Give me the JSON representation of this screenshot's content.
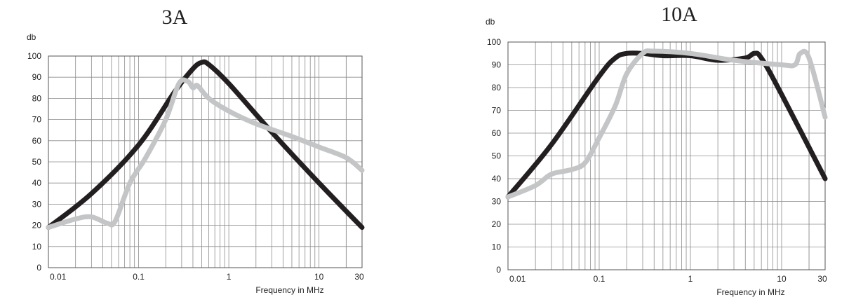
{
  "colors": {
    "dark_series": "#231f20",
    "light_series": "#c4c5c7",
    "grid": "#8c8c8c",
    "text": "#222222"
  },
  "chart_data": [
    {
      "type": "line",
      "title": "3A",
      "ylabel": "db",
      "xlabel": "Frequency in MHz",
      "x_scale": "log",
      "xlim": [
        0.01,
        30
      ],
      "ylim": [
        0,
        100
      ],
      "grid": true,
      "x_tick_labels": [
        "0.01",
        "0.1",
        "1",
        "10",
        "30"
      ],
      "y_tick_labels": [
        "0",
        "10",
        "20",
        "30",
        "40",
        "50",
        "60",
        "70",
        "80",
        "90",
        "100"
      ],
      "series": [
        {
          "color": "#231f20",
          "x": [
            0.01,
            0.03,
            0.1,
            0.25,
            0.4,
            0.5,
            0.6,
            1,
            3,
            10,
            30
          ],
          "y": [
            19,
            35,
            58,
            83,
            94,
            97,
            96,
            87,
            64,
            40,
            19
          ]
        },
        {
          "color": "#c4c5c7",
          "x": [
            0.01,
            0.02,
            0.03,
            0.045,
            0.055,
            0.08,
            0.12,
            0.2,
            0.28,
            0.35,
            0.4,
            0.45,
            0.6,
            1,
            2,
            5,
            10,
            20,
            30
          ],
          "y": [
            19,
            23,
            24,
            21,
            22,
            40,
            52,
            70,
            87,
            88,
            85,
            86,
            80,
            74,
            68,
            62,
            57,
            52,
            46
          ]
        }
      ]
    },
    {
      "type": "line",
      "title": "10A",
      "ylabel": "db",
      "xlabel": "Frequency in MHz",
      "x_scale": "log",
      "xlim": [
        0.01,
        30
      ],
      "ylim": [
        0,
        100
      ],
      "grid": true,
      "x_tick_labels": [
        "0.01",
        "0.1",
        "1",
        "10",
        "30"
      ],
      "y_tick_labels": [
        "0",
        "10",
        "20",
        "30",
        "40",
        "50",
        "60",
        "70",
        "80",
        "90",
        "100"
      ],
      "series": [
        {
          "color": "#231f20",
          "x": [
            0.01,
            0.03,
            0.1,
            0.15,
            0.2,
            0.3,
            0.5,
            1,
            2,
            4,
            5,
            6,
            10,
            30
          ],
          "y": [
            32,
            55,
            85,
            93,
            95,
            95,
            94,
            94,
            92,
            93,
            95,
            93,
            77,
            40
          ]
        },
        {
          "color": "#c4c5c7",
          "x": [
            0.01,
            0.02,
            0.03,
            0.05,
            0.07,
            0.1,
            0.15,
            0.2,
            0.3,
            0.4,
            1,
            3,
            10,
            14,
            16,
            20,
            30
          ],
          "y": [
            32,
            37,
            42,
            44,
            47,
            58,
            72,
            86,
            95,
            96,
            95,
            92,
            90,
            90,
            95,
            93,
            67
          ]
        }
      ]
    }
  ]
}
